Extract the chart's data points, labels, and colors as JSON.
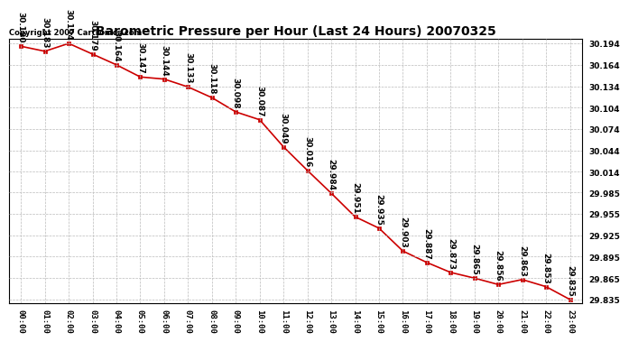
{
  "title": "Barometric Pressure per Hour (Last 24 Hours) 20070325",
  "copyright": "Copyright 2007 Cartronics.com",
  "hours": [
    "00:00",
    "01:00",
    "02:00",
    "03:00",
    "04:00",
    "05:00",
    "06:00",
    "07:00",
    "08:00",
    "09:00",
    "10:00",
    "11:00",
    "12:00",
    "13:00",
    "14:00",
    "15:00",
    "16:00",
    "17:00",
    "18:00",
    "19:00",
    "20:00",
    "21:00",
    "22:00",
    "23:00"
  ],
  "values": [
    30.19,
    30.183,
    30.194,
    30.179,
    30.164,
    30.147,
    30.144,
    30.133,
    30.118,
    30.098,
    30.087,
    30.049,
    30.016,
    29.984,
    29.951,
    29.935,
    29.903,
    29.887,
    29.873,
    29.865,
    29.856,
    29.863,
    29.853,
    29.835
  ],
  "ylim_min": 29.83,
  "ylim_max": 30.2,
  "line_color": "#cc0000",
  "marker_color": "#cc0000",
  "bg_color": "#ffffff",
  "grid_color": "#bbbbbb",
  "label_fontsize": 6.5,
  "title_fontsize": 10,
  "copyright_fontsize": 6,
  "yticks": [
    29.835,
    29.865,
    29.895,
    29.925,
    29.955,
    29.985,
    30.014,
    30.044,
    30.074,
    30.104,
    30.134,
    30.164,
    30.194
  ]
}
